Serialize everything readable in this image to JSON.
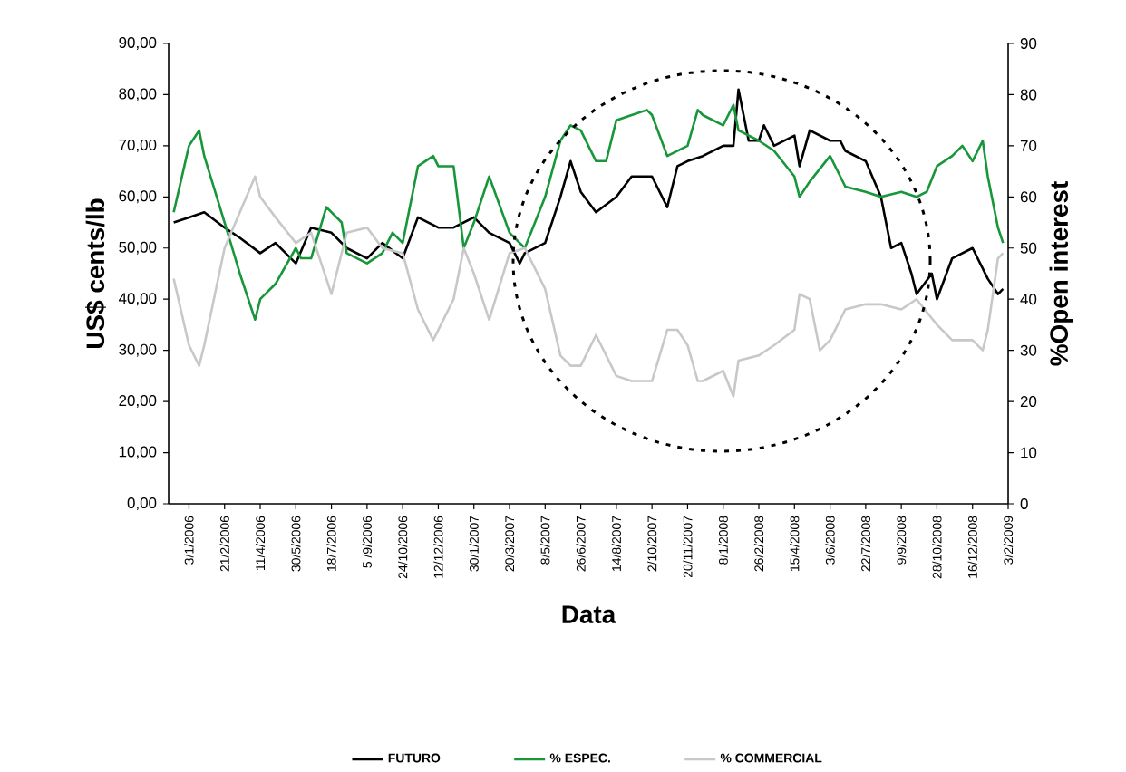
{
  "chart_data": {
    "type": "line",
    "xlabel": "Data",
    "ylabel": "US$ cents/lb",
    "y2label": "%Open interest",
    "xlim": [
      "2005-12-06",
      "2009-02-03"
    ],
    "xticks": [
      {
        "value": "2006-01-03",
        "label": "3/1/2006"
      },
      {
        "value": "2006-02-21",
        "label": "21/2/2006"
      },
      {
        "value": "2006-04-11",
        "label": "11/4/2006"
      },
      {
        "value": "2006-05-30",
        "label": "30/5/2006"
      },
      {
        "value": "2006-07-18",
        "label": "18/7/2006"
      },
      {
        "value": "2006-09-05",
        "label": "5 /9/2006"
      },
      {
        "value": "2006-10-24",
        "label": "24/10/2006"
      },
      {
        "value": "2006-12-12",
        "label": "12/12/2006"
      },
      {
        "value": "2007-01-30",
        "label": "30/1/2007"
      },
      {
        "value": "2007-03-20",
        "label": "20/3/2007"
      },
      {
        "value": "2007-05-08",
        "label": "8/5/2007"
      },
      {
        "value": "2007-06-26",
        "label": "26/6/2007"
      },
      {
        "value": "2007-08-14",
        "label": "14/8/2007"
      },
      {
        "value": "2007-10-02",
        "label": "2/10/2007"
      },
      {
        "value": "2007-11-20",
        "label": "20/11/2007"
      },
      {
        "value": "2008-01-08",
        "label": "8/1/2008"
      },
      {
        "value": "2008-02-26",
        "label": "26/2/2008"
      },
      {
        "value": "2008-04-15",
        "label": "15/4/2008"
      },
      {
        "value": "2008-06-03",
        "label": "3/6/2008"
      },
      {
        "value": "2008-07-22",
        "label": "22/7/2008"
      },
      {
        "value": "2008-09-09",
        "label": "9/9/2008"
      },
      {
        "value": "2008-10-28",
        "label": "28/10/2008"
      },
      {
        "value": "2008-12-16",
        "label": "16/12/2008"
      },
      {
        "value": "2009-02-03",
        "label": "3/2/2009"
      }
    ],
    "ylim": [
      0,
      90
    ],
    "yticks": [
      {
        "value": 0,
        "label": "0,00"
      },
      {
        "value": 10,
        "label": "10,00"
      },
      {
        "value": 20,
        "label": "20,00"
      },
      {
        "value": 30,
        "label": "30,00"
      },
      {
        "value": 40,
        "label": "40,00"
      },
      {
        "value": 50,
        "label": "50,00"
      },
      {
        "value": 60,
        "label": "60,00"
      },
      {
        "value": 70,
        "label": "70,00"
      },
      {
        "value": 80,
        "label": "80,00"
      },
      {
        "value": 90,
        "label": "90,00"
      }
    ],
    "y2lim": [
      0,
      90
    ],
    "y2ticks": [
      0,
      10,
      20,
      30,
      40,
      50,
      60,
      70,
      80,
      90
    ],
    "legend": "bottom",
    "grid": false,
    "marker": "none",
    "line_style": "solid",
    "series": [
      {
        "name": "FUTURO",
        "color": "#000000",
        "x": [
          "2005-12-13",
          "2006-01-03",
          "2006-01-24",
          "2006-02-21",
          "2006-03-14",
          "2006-04-11",
          "2006-05-02",
          "2006-05-30",
          "2006-06-20",
          "2006-07-18",
          "2006-08-08",
          "2006-09-05",
          "2006-09-26",
          "2006-10-24",
          "2006-11-14",
          "2006-12-12",
          "2007-01-02",
          "2007-01-30",
          "2007-02-20",
          "2007-03-20",
          "2007-04-03",
          "2007-04-10",
          "2007-05-08",
          "2007-05-29",
          "2007-06-12",
          "2007-06-26",
          "2007-07-17",
          "2007-08-14",
          "2007-09-04",
          "2007-10-02",
          "2007-10-23",
          "2007-11-06",
          "2007-11-20",
          "2007-12-11",
          "2008-01-08",
          "2008-01-22",
          "2008-01-29",
          "2008-02-12",
          "2008-02-26",
          "2008-03-04",
          "2008-03-18",
          "2008-04-15",
          "2008-04-22",
          "2008-05-06",
          "2008-06-03",
          "2008-06-17",
          "2008-06-24",
          "2008-07-22",
          "2008-08-12",
          "2008-08-26",
          "2008-09-09",
          "2008-09-23",
          "2008-09-30",
          "2008-10-21",
          "2008-10-28",
          "2008-11-18",
          "2008-12-16",
          "2009-01-06",
          "2009-01-20",
          "2009-01-27"
        ],
        "values": [
          55,
          56,
          57,
          54,
          52,
          49,
          51,
          47,
          54,
          53,
          50,
          48,
          51,
          48,
          56,
          54,
          54,
          56,
          53,
          51,
          47,
          49,
          51,
          60,
          67,
          61,
          57,
          60,
          64,
          64,
          58,
          66,
          67,
          68,
          70,
          70,
          81,
          71,
          71,
          74,
          70,
          72,
          66,
          73,
          71,
          71,
          69,
          67,
          60,
          50,
          51,
          45,
          41,
          45,
          40,
          48,
          50,
          44,
          41,
          42
        ]
      },
      {
        "name": "% ESPEC.",
        "color": "#17963a",
        "axis": "y2",
        "x": [
          "2005-12-13",
          "2006-01-03",
          "2006-01-17",
          "2006-01-24",
          "2006-02-21",
          "2006-03-14",
          "2006-04-04",
          "2006-04-11",
          "2006-05-02",
          "2006-05-30",
          "2006-06-06",
          "2006-06-20",
          "2006-07-11",
          "2006-08-01",
          "2006-08-08",
          "2006-09-05",
          "2006-09-26",
          "2006-10-10",
          "2006-10-24",
          "2006-11-14",
          "2006-12-05",
          "2006-12-12",
          "2007-01-02",
          "2007-01-16",
          "2007-01-30",
          "2007-02-20",
          "2007-03-20",
          "2007-04-10",
          "2007-05-08",
          "2007-05-29",
          "2007-06-12",
          "2007-06-26",
          "2007-07-17",
          "2007-07-31",
          "2007-08-14",
          "2007-09-04",
          "2007-09-25",
          "2007-10-02",
          "2007-10-23",
          "2007-11-20",
          "2007-12-04",
          "2007-12-11",
          "2008-01-08",
          "2008-01-22",
          "2008-01-29",
          "2008-02-26",
          "2008-03-18",
          "2008-04-15",
          "2008-04-22",
          "2008-05-06",
          "2008-06-03",
          "2008-06-24",
          "2008-07-22",
          "2008-08-12",
          "2008-09-09",
          "2008-09-30",
          "2008-10-14",
          "2008-10-28",
          "2008-11-18",
          "2008-12-02",
          "2008-12-16",
          "2008-12-30",
          "2009-01-06",
          "2009-01-20",
          "2009-01-27"
        ],
        "values": [
          57,
          70,
          73,
          68,
          55,
          45,
          36,
          40,
          43,
          50,
          48,
          48,
          58,
          55,
          49,
          47,
          49,
          53,
          51,
          66,
          68,
          66,
          66,
          50,
          55,
          64,
          53,
          50,
          60,
          71,
          74,
          73,
          67,
          67,
          75,
          76,
          77,
          76,
          68,
          70,
          77,
          76,
          74,
          78,
          73,
          71,
          69,
          64,
          60,
          63,
          68,
          62,
          61,
          60,
          61,
          60,
          61,
          66,
          68,
          70,
          67,
          71,
          64,
          54,
          51
        ]
      },
      {
        "name": "% COMMERCIAL",
        "color": "#c8c8c8",
        "axis": "y2",
        "x": [
          "2005-12-13",
          "2006-01-03",
          "2006-01-17",
          "2006-01-24",
          "2006-02-21",
          "2006-03-14",
          "2006-04-04",
          "2006-04-11",
          "2006-05-02",
          "2006-05-30",
          "2006-06-20",
          "2006-07-18",
          "2006-08-08",
          "2006-09-05",
          "2006-09-26",
          "2006-10-24",
          "2006-11-14",
          "2006-12-05",
          "2006-12-12",
          "2007-01-02",
          "2007-01-16",
          "2007-01-30",
          "2007-02-20",
          "2007-03-20",
          "2007-04-10",
          "2007-05-08",
          "2007-05-29",
          "2007-06-12",
          "2007-06-26",
          "2007-07-17",
          "2007-08-14",
          "2007-09-04",
          "2007-10-02",
          "2007-10-23",
          "2007-11-06",
          "2007-11-20",
          "2007-12-04",
          "2007-12-11",
          "2008-01-08",
          "2008-01-22",
          "2008-01-29",
          "2008-02-26",
          "2008-03-18",
          "2008-04-15",
          "2008-04-22",
          "2008-05-06",
          "2008-05-20",
          "2008-06-03",
          "2008-06-24",
          "2008-07-22",
          "2008-08-12",
          "2008-09-09",
          "2008-09-30",
          "2008-10-28",
          "2008-11-18",
          "2008-12-16",
          "2008-12-30",
          "2009-01-06",
          "2009-01-20",
          "2009-01-27"
        ],
        "values": [
          44,
          31,
          27,
          31,
          50,
          57,
          64,
          60,
          56,
          51,
          53,
          41,
          53,
          54,
          50,
          49,
          38,
          32,
          34,
          40,
          50,
          45,
          36,
          49,
          50,
          42,
          29,
          27,
          27,
          33,
          25,
          24,
          24,
          34,
          34,
          31,
          24,
          24,
          26,
          21,
          28,
          29,
          31,
          34,
          41,
          40,
          30,
          32,
          38,
          39,
          39,
          38,
          40,
          35,
          32,
          32,
          30,
          34,
          48,
          49
        ]
      }
    ]
  }
}
